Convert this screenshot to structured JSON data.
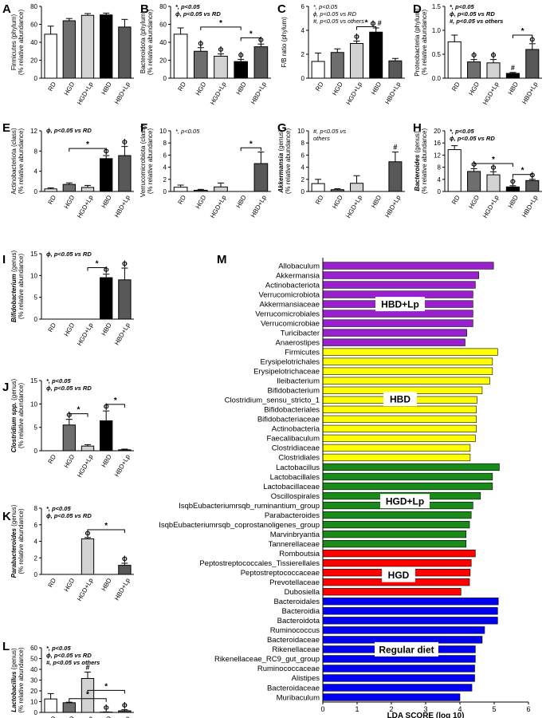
{
  "figure": {
    "chart_data": [
      {
        "panel": "A",
        "type": "bar",
        "ylabel": "Firmicutes (phylum)\n(% relative abundance)",
        "ylim": [
          0,
          80
        ],
        "yticks": [
          0,
          20,
          40,
          60,
          80
        ],
        "categories": [
          "RD",
          "HGD",
          "HGD+Lp",
          "HBD",
          "HBD+Lp"
        ],
        "values": [
          49,
          64,
          70,
          70.5,
          57
        ],
        "errors": [
          9,
          2.5,
          2,
          2,
          8.5
        ],
        "marks": [
          "",
          "",
          "",
          "",
          ""
        ],
        "legend": [],
        "brackets": []
      },
      {
        "panel": "B",
        "type": "bar",
        "ylabel": "Bacteroidota (phylum)\n(% relative abundance)",
        "ylim": [
          0,
          80
        ],
        "yticks": [
          0,
          20,
          40,
          60,
          80
        ],
        "categories": [
          "RD",
          "HGD",
          "HGD+Lp",
          "HBD",
          "HBD+Lp"
        ],
        "values": [
          49,
          30,
          24.5,
          18.5,
          35
        ],
        "errors": [
          7,
          4,
          2.5,
          2.5,
          3
        ],
        "marks": [
          "",
          "ϕ",
          "ϕ",
          "ϕ",
          "ϕ"
        ],
        "legend": [
          "*, p<0.05",
          "ϕ, p<0.05 vs RD"
        ],
        "brackets": [
          {
            "from": 1,
            "to": 3,
            "label": "*",
            "y": 57
          },
          {
            "from": 3,
            "to": 4,
            "label": "*",
            "y": 45
          }
        ]
      },
      {
        "panel": "C",
        "type": "bar",
        "ylabel": "F/B ratio (phylum)",
        "ylim": [
          0,
          6
        ],
        "yticks": [
          0,
          2,
          4,
          6
        ],
        "categories": [
          "RD",
          "HGD",
          "HGD+Lp",
          "HBD",
          "HBD+Lp"
        ],
        "values": [
          1.4,
          2.15,
          2.9,
          3.85,
          1.45
        ],
        "errors": [
          0.7,
          0.3,
          0.2,
          0.35,
          0.2
        ],
        "marks": [
          "",
          "",
          "ϕ",
          "ϕ #",
          ""
        ],
        "legend": [
          "*, p<0.05",
          "ϕ, p<0.05 vs RD",
          "#, p<0.05 vs others"
        ],
        "brackets": [
          {
            "from": 2,
            "to": 3,
            "label": "*",
            "y": 4.3
          }
        ]
      },
      {
        "panel": "D",
        "type": "bar",
        "ylabel": "Proteobacteria (phylum)\n(% relative abundance)",
        "ylim": [
          0,
          1.5
        ],
        "yticks": [
          0,
          0.5,
          1.0,
          1.5
        ],
        "categories": [
          "RD",
          "HGD",
          "HGD+Lp",
          "HBD",
          "HBD+Lp"
        ],
        "values": [
          0.76,
          0.34,
          0.32,
          0.1,
          0.6
        ],
        "errors": [
          0.14,
          0.05,
          0.07,
          0.02,
          0.12
        ],
        "marks": [
          "",
          "ϕ",
          "ϕ",
          "#",
          "ϕ"
        ],
        "legend": [
          "*, p<0.05",
          "ϕ, p<0.05 vs RD",
          "#, p<0.05 vs others"
        ],
        "brackets": [
          {
            "from": 3,
            "to": 4,
            "label": "*",
            "y": 0.9
          }
        ]
      },
      {
        "panel": "E",
        "type": "bar",
        "ylabel": "Actinobacteriota (class)\n(% relative abundance)",
        "ylim": [
          0,
          12
        ],
        "yticks": [
          0,
          4,
          8,
          12
        ],
        "categories": [
          "RD",
          "HGD",
          "HGD+Lp",
          "HBD",
          "HBD+Lp"
        ],
        "values": [
          0.5,
          1.4,
          0.8,
          6.5,
          7.1
        ],
        "errors": [
          0.2,
          0.3,
          0.4,
          0.6,
          1.8
        ],
        "marks": [
          "",
          "",
          "",
          "ϕ",
          "ϕ"
        ],
        "legend": [
          "ϕ, p<0.05 vs RD"
        ],
        "brackets": [
          {
            "from": 1,
            "to": 3,
            "label": "*",
            "y": 8.5
          }
        ]
      },
      {
        "panel": "F",
        "type": "bar",
        "ylabel": "Verrucomicrobiota (class)\n(% relative abundance)",
        "ylim": [
          0,
          10
        ],
        "yticks": [
          0,
          2,
          4,
          6,
          8,
          10
        ],
        "categories": [
          "RD",
          "HGD",
          "HGD+Lp",
          "HBD",
          "HBD+Lp"
        ],
        "values": [
          0.7,
          0.2,
          0.75,
          0,
          4.6
        ],
        "errors": [
          0.35,
          0.15,
          0.65,
          0,
          1.9
        ],
        "marks": [
          "",
          "",
          "",
          "",
          ""
        ],
        "legend": [
          "*, p<0.05"
        ],
        "brackets": [
          {
            "from": 3,
            "to": 4,
            "label": "*",
            "y": 7.2
          }
        ]
      },
      {
        "panel": "G",
        "type": "bar",
        "ylabel": "Akkermansia (genus)\n(% relative abundance)",
        "ylim": [
          0,
          10
        ],
        "yticks": [
          0,
          2,
          4,
          6,
          8,
          10
        ],
        "categories": [
          "RD",
          "HGD",
          "HGD+Lp",
          "HBD",
          "HBD+Lp"
        ],
        "values": [
          1.3,
          0.3,
          1.35,
          0,
          4.9
        ],
        "errors": [
          0.7,
          0.15,
          1.25,
          0,
          1.6
        ],
        "marks": [
          "",
          "",
          "",
          "",
          "#"
        ],
        "legend": [
          "#, p<0.05 vs",
          "others"
        ],
        "brackets": []
      },
      {
        "panel": "H",
        "type": "bar",
        "ylabel": "Bacteroides (genus)\n(% relative abundance)",
        "ylim": [
          0,
          20
        ],
        "yticks": [
          0,
          4,
          8,
          12,
          16,
          20
        ],
        "categories": [
          "RD",
          "HGD",
          "HGD+Lp",
          "HBD",
          "HBD+Lp"
        ],
        "values": [
          13.8,
          6.6,
          5.5,
          1.5,
          3.6
        ],
        "errors": [
          1.3,
          0.9,
          1.0,
          0.4,
          0.4
        ],
        "marks": [
          "",
          "ϕ",
          "ϕ",
          "ϕ",
          "ϕ"
        ],
        "legend": [
          "*, p<0.05",
          "ϕ, p<0.05 vs RD"
        ],
        "brackets": [
          {
            "from": 1,
            "to": 3,
            "label": "*",
            "y": 9.2
          },
          {
            "from": 3,
            "to": 4,
            "label": "*",
            "y": 5.6
          }
        ]
      },
      {
        "panel": "I",
        "type": "bar",
        "ylabel": "Bifidobacterium (genus)\n(% relative abundance)",
        "ylim": [
          0,
          15
        ],
        "yticks": [
          0,
          5,
          10,
          15
        ],
        "categories": [
          "RD",
          "HGD",
          "HGD+Lp",
          "HBD",
          "HBD+Lp"
        ],
        "values": [
          0,
          0,
          0,
          9.5,
          9.0
        ],
        "errors": [
          0,
          0,
          0,
          0.8,
          2.7
        ],
        "marks": [
          "",
          "",
          "",
          "ϕ",
          "ϕ"
        ],
        "legend": [
          "ϕ, p<0.05 vs RD"
        ],
        "brackets": [
          {
            "from": 2,
            "to": 3,
            "label": "*",
            "y": 11.8
          }
        ]
      },
      {
        "panel": "J",
        "type": "bar",
        "ylabel": "Clostridium spp. (genus)\n(% relative abundance)",
        "ylim": [
          0,
          15
        ],
        "yticks": [
          0,
          5,
          10,
          15
        ],
        "categories": [
          "RD",
          "HGD",
          "HGD+Lp",
          "HBD",
          "HBD+Lp"
        ],
        "values": [
          0,
          5.5,
          1.0,
          6.4,
          0.2
        ],
        "errors": [
          0,
          1.2,
          0.3,
          2.1,
          0.15
        ],
        "marks": [
          "",
          "ϕ",
          "",
          "ϕ",
          ""
        ],
        "legend": [
          "*, p<0.05",
          "ϕ, p<0.05 vs RD"
        ],
        "brackets": [
          {
            "from": 1,
            "to": 2,
            "label": "*",
            "y": 7.9
          },
          {
            "from": 3,
            "to": 4,
            "label": "*",
            "y": 9.9
          }
        ]
      },
      {
        "panel": "K",
        "type": "bar",
        "ylabel": "Parabacteroides (genus)\n(% relative abundance)",
        "ylim": [
          0,
          8
        ],
        "yticks": [
          0,
          2,
          4,
          6,
          8
        ],
        "categories": [
          "RD",
          "HGD",
          "HGD+Lp",
          "HBD",
          "HBD+Lp"
        ],
        "values": [
          0,
          0,
          4.3,
          0,
          1.1
        ],
        "errors": [
          0,
          0,
          0.15,
          0,
          0.25
        ],
        "marks": [
          "",
          "",
          "ϕ",
          "",
          "ϕ"
        ],
        "legend": [
          "*, p<0.05",
          "ϕ, p<0.05 vs RD"
        ],
        "brackets": [
          {
            "from": 2,
            "to": 4,
            "label": "*",
            "y": 5.4
          }
        ]
      },
      {
        "panel": "L",
        "type": "bar",
        "ylabel": "Lactobacillus (genus)\n(% relative abundance)",
        "ylim": [
          0,
          60
        ],
        "yticks": [
          0,
          10,
          20,
          30,
          40,
          50,
          60
        ],
        "categories": [
          "RD",
          "HGD",
          "HGD+Lp",
          "HBD",
          "HBD+Lp"
        ],
        "values": [
          12.5,
          9,
          31.5,
          0.3,
          1.5
        ],
        "errors": [
          5,
          0.5,
          6,
          0.2,
          1
        ],
        "marks": [
          "",
          "",
          "#",
          "ϕ",
          "ϕ"
        ],
        "legend": [
          "*, p<0.05",
          "ϕ, p<0.05 vs RD",
          "#, p<0.05 vs others"
        ],
        "brackets": [
          {
            "from": 2,
            "to": 4,
            "label": "*",
            "y": 20.5
          },
          {
            "from": 1,
            "to": 3,
            "label": "*",
            "y": 12.8
          }
        ]
      },
      {
        "panel": "M",
        "type": "bar",
        "orientation": "horizontal",
        "xlabel": "LDA SCORE (log 10)",
        "xlim": [
          0,
          6
        ],
        "xticks": [
          0,
          1,
          2,
          3,
          4,
          5,
          6
        ],
        "groups": [
          {
            "name": "HBD+Lp",
            "color": "#9b1fd0",
            "items": [
              {
                "label": "Allobaculum",
                "value": 4.98
              },
              {
                "label": "Akkermansia",
                "value": 4.55
              },
              {
                "label": "Actinobacteriota",
                "value": 4.45
              },
              {
                "label": "Verrucomicrobiota",
                "value": 4.38
              },
              {
                "label": "Akkermansiaceae",
                "value": 4.38
              },
              {
                "label": "Verrucomicrobiales",
                "value": 4.38
              },
              {
                "label": "Verrucomicrobiae",
                "value": 4.38
              },
              {
                "label": "Turicibacter",
                "value": 4.2
              },
              {
                "label": "Anaerostipes",
                "value": 4.15
              }
            ]
          },
          {
            "name": "HBD",
            "color": "#ffff00",
            "items": [
              {
                "label": "Firmicutes",
                "value": 5.1
              },
              {
                "label": "Erysipelotrichales",
                "value": 4.95
              },
              {
                "label": "Erysipelotrichaceae",
                "value": 4.95
              },
              {
                "label": "Ileibacterium",
                "value": 4.87
              },
              {
                "label": "Bifidobacterium",
                "value": 4.65
              },
              {
                "label": "Clostridium_sensu_stricto_1",
                "value": 4.5
              },
              {
                "label": "Bifidobacteriales",
                "value": 4.48
              },
              {
                "label": "Bifidobacteriaceae",
                "value": 4.48
              },
              {
                "label": "Actinobacteria",
                "value": 4.48
              },
              {
                "label": "Faecalibaculum",
                "value": 4.45
              },
              {
                "label": "Clostridiaceae",
                "value": 4.3
              },
              {
                "label": "Clostridiales",
                "value": 4.3
              }
            ]
          },
          {
            "name": "HGD+Lp",
            "color": "#1a8a1a",
            "items": [
              {
                "label": "Lactobacillus",
                "value": 5.15
              },
              {
                "label": "Lactobacillales",
                "value": 4.95
              },
              {
                "label": "Lactobacillaceae",
                "value": 4.95
              },
              {
                "label": "Oscillospirales",
                "value": 4.6
              },
              {
                "label": "IsqbEubacteriumrsqb_ruminantium_group",
                "value": 4.38
              },
              {
                "label": "Parabacteroides",
                "value": 4.33
              },
              {
                "label": "IsqbEubacteriumrsqb_coprostanoligenes_group",
                "value": 4.28
              },
              {
                "label": "Marvinbryantia",
                "value": 4.18
              },
              {
                "label": "Tannerellaceae",
                "value": 4.18
              }
            ]
          },
          {
            "name": "HGD",
            "color": "#ff0000",
            "items": [
              {
                "label": "Romboutsia",
                "value": 4.45
              },
              {
                "label": "Peptostreptococcales_Tissierellales",
                "value": 4.33
              },
              {
                "label": "Peptostreptococcaceae",
                "value": 4.3
              },
              {
                "label": "Prevotellaceae",
                "value": 4.28
              },
              {
                "label": "Dubosiella",
                "value": 4.03
              }
            ]
          },
          {
            "name": "Regular diet",
            "color": "#0000ee",
            "items": [
              {
                "label": "Bacteroidales",
                "value": 5.12
              },
              {
                "label": "Bacteroidia",
                "value": 5.1
              },
              {
                "label": "Bacteroidota",
                "value": 5.1
              },
              {
                "label": "Ruminococcus",
                "value": 4.72
              },
              {
                "label": "Bacteroidaceae",
                "value": 4.65
              },
              {
                "label": "Rikenellaceae",
                "value": 4.45
              },
              {
                "label": "Rikenellaceae_RC9_gut_group",
                "value": 4.45
              },
              {
                "label": "Ruminococcaceae",
                "value": 4.43
              },
              {
                "label": "Alistipes",
                "value": 4.43
              },
              {
                "label": "Bacteroidaceae",
                "value": 4.35
              },
              {
                "label": "Muribaculum",
                "value": 4.0
              }
            ]
          }
        ]
      }
    ],
    "bar_fills": [
      "#ffffff",
      "#6e6e6e",
      "#d2d2d2",
      "#000000",
      "#585858"
    ]
  }
}
